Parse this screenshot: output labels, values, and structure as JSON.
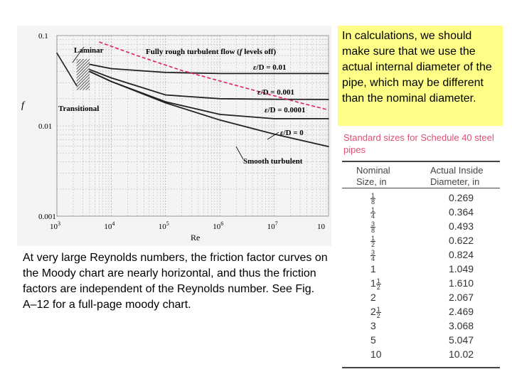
{
  "moody": {
    "y_axis_label": "f",
    "x_axis_label": "Re",
    "y_ticks": [
      "0.1",
      "0.01",
      "0.001"
    ],
    "x_ticks": [
      {
        "base": "10",
        "exp": "3"
      },
      {
        "base": "10",
        "exp": "4"
      },
      {
        "base": "10",
        "exp": "5"
      },
      {
        "base": "10",
        "exp": "6"
      },
      {
        "base": "10",
        "exp": "7"
      },
      {
        "base": "10",
        "exp": ""
      }
    ],
    "labels": {
      "laminar": "Laminar",
      "transitional": "Transitional",
      "fully_rough": "Fully rough turbulent flow (",
      "fully_rough_f": "f",
      "fully_rough_end": " levels off)",
      "eps1": "/D = 0.01",
      "eps2": "/D = 0.001",
      "eps3": "/D = 0.0001",
      "eps4": "/D = 0",
      "eps_symbol": "ε",
      "smooth": "Smooth turbulent"
    },
    "colors": {
      "boundary_line": "#e0206a",
      "curves": "#222222",
      "hatch": "#333333"
    }
  },
  "chart_data": {
    "type": "line",
    "title": "",
    "xlabel": "Re",
    "ylabel": "f",
    "xscale": "log",
    "yscale": "log",
    "xlim": [
      1000,
      100000000
    ],
    "ylim": [
      0.001,
      0.1
    ],
    "grid": true,
    "series": [
      {
        "name": "Laminar",
        "x": [
          1000,
          2300
        ],
        "y": [
          0.064,
          0.028
        ]
      },
      {
        "name": "ε/D = 0.01",
        "x": [
          4000,
          10000,
          100000,
          1000000,
          10000000,
          100000000
        ],
        "y": [
          0.048,
          0.043,
          0.039,
          0.038,
          0.038,
          0.038
        ]
      },
      {
        "name": "ε/D = 0.001",
        "x": [
          4000,
          10000,
          100000,
          1000000,
          10000000,
          100000000
        ],
        "y": [
          0.042,
          0.034,
          0.022,
          0.02,
          0.0197,
          0.0196
        ]
      },
      {
        "name": "ε/D = 0.0001",
        "x": [
          4000,
          10000,
          100000,
          1000000,
          10000000,
          100000000
        ],
        "y": [
          0.04,
          0.031,
          0.0185,
          0.0134,
          0.012,
          0.012
        ]
      },
      {
        "name": "ε/D = 0",
        "x": [
          4000,
          10000,
          100000,
          1000000,
          10000000,
          100000000
        ],
        "y": [
          0.04,
          0.031,
          0.018,
          0.0116,
          0.0081,
          0.0059
        ]
      }
    ]
  },
  "note": {
    "text": "In calculations, we should make sure that we use the actual internal diameter of the pipe, which may be different than the nominal diameter."
  },
  "caption": {
    "text": "At very large Reynolds numbers, the friction factor curves on the Moody chart are nearly horizontal, and thus the friction factors are independent of the Reynolds number. See Fig. A–12 for a full-page moody chart."
  },
  "pipe_table": {
    "title": "Standard sizes for Schedule 40 steel pipes",
    "col1_header": "Nominal Size, in",
    "col2_header": "Actual Inside Diameter, in",
    "rows": [
      {
        "whole": "",
        "num": "1",
        "den": "8",
        "dia": "0.269"
      },
      {
        "whole": "",
        "num": "1",
        "den": "4",
        "dia": "0.364"
      },
      {
        "whole": "",
        "num": "3",
        "den": "8",
        "dia": "0.493"
      },
      {
        "whole": "",
        "num": "1",
        "den": "2",
        "dia": "0.622"
      },
      {
        "whole": "",
        "num": "3",
        "den": "4",
        "dia": "0.824"
      },
      {
        "whole": "1",
        "num": "",
        "den": "",
        "dia": "1.049"
      },
      {
        "whole": "1",
        "num": "1",
        "den": "2",
        "dia": "1.610"
      },
      {
        "whole": "2",
        "num": "",
        "den": "",
        "dia": "2.067"
      },
      {
        "whole": "2",
        "num": "1",
        "den": "2",
        "dia": "2.469"
      },
      {
        "whole": "3",
        "num": "",
        "den": "",
        "dia": "3.068"
      },
      {
        "whole": "5",
        "num": "",
        "den": "",
        "dia": "5.047"
      },
      {
        "whole": "10",
        "num": "",
        "den": "",
        "dia": "10.02"
      }
    ]
  }
}
